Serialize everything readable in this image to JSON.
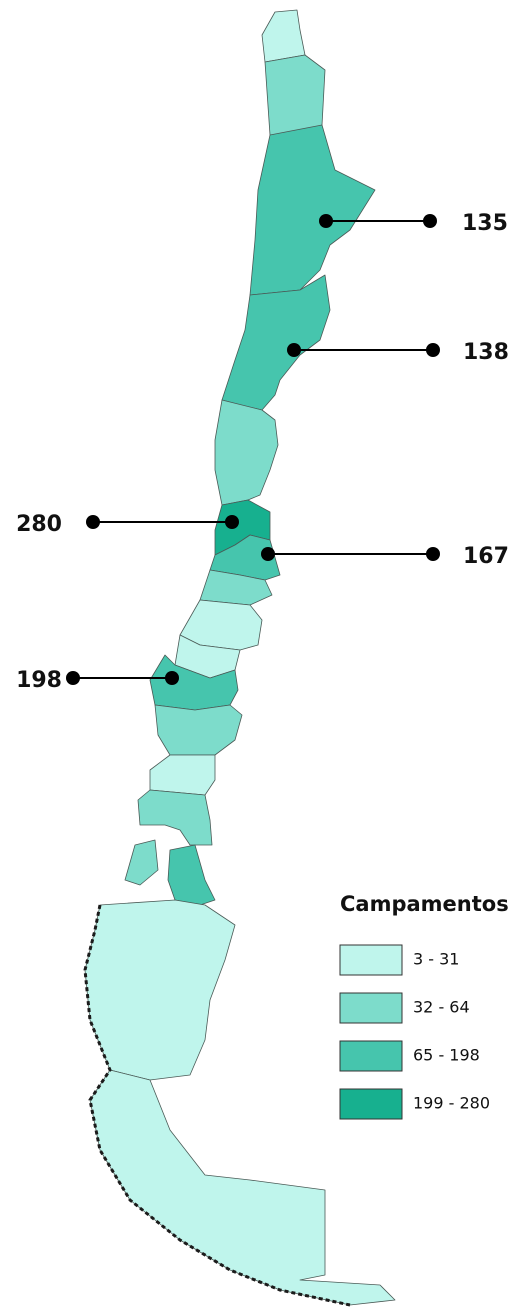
{
  "map": {
    "legend": {
      "title": "Campamentos",
      "items": [
        {
          "label": "3 - 31",
          "color": "#bff5ec"
        },
        {
          "label": "32 - 64",
          "color": "#7ddccb"
        },
        {
          "label": "65 - 198",
          "color": "#46c5ad"
        },
        {
          "label": "199 - 280",
          "color": "#17b08f"
        }
      ]
    },
    "callouts": [
      {
        "value": 135
      },
      {
        "value": 138
      },
      {
        "value": 280
      },
      {
        "value": 167
      },
      {
        "value": 198
      }
    ]
  }
}
